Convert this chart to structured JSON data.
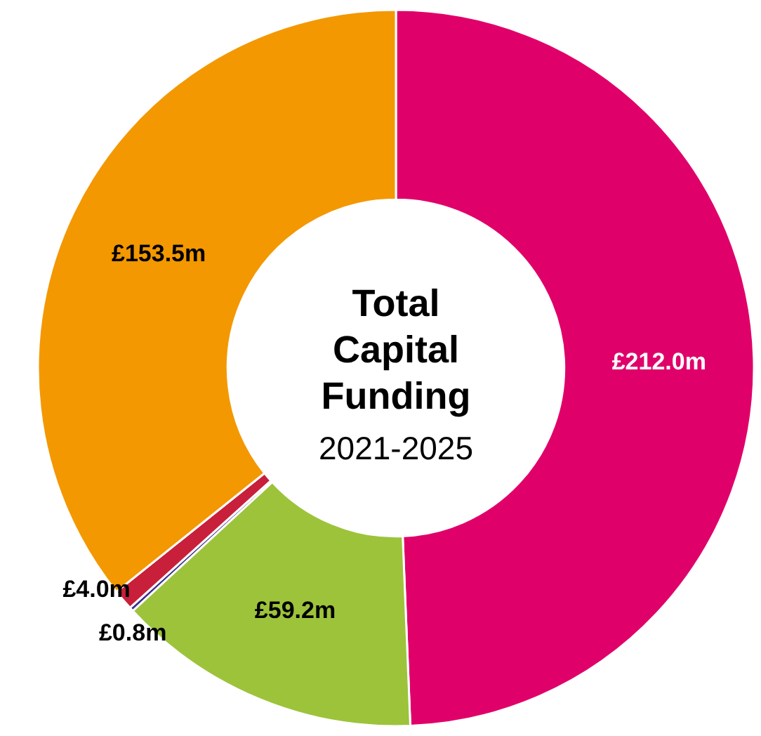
{
  "chart_data": {
    "type": "donut",
    "title": "Total Capital Funding",
    "subtitle": "2021-2025",
    "categories": [
      null,
      null,
      null,
      null,
      null
    ],
    "values": [
      212.0,
      59.2,
      0.8,
      4.0,
      153.5
    ],
    "colors": [
      "#e0006a",
      "#9dc33b",
      "#3b2f8f",
      "#c8203a",
      "#f39800"
    ],
    "value_labels": [
      "£212.0m",
      "£59.2m",
      "£0.8m",
      "£4.0m",
      "£153.5m"
    ]
  }
}
